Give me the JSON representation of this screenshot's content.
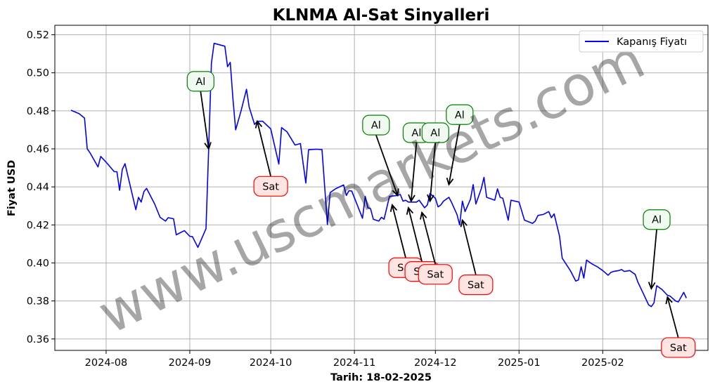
{
  "chart_data": {
    "type": "line",
    "title": "KLNMA Al-Sat Sinyalleri",
    "xlabel": "Tarih: 18-02-2025",
    "ylabel": "Fiyat USD",
    "ylim": [
      0.354,
      0.525
    ],
    "xlim": [
      "2024-07-13",
      "2025-03-12"
    ],
    "x_tick_labels": [
      "2024-08",
      "2024-09",
      "2024-10",
      "2024-11",
      "2024-12",
      "2025-01",
      "2025-02"
    ],
    "x_tick_dates": [
      "2024-08-01",
      "2024-09-01",
      "2024-10-01",
      "2024-11-01",
      "2024-12-01",
      "2025-01-01",
      "2025-02-01"
    ],
    "y_ticks": [
      0.36,
      0.38,
      0.4,
      0.42,
      0.44,
      0.46,
      0.48,
      0.5,
      0.52
    ],
    "y_tick_labels": [
      "0.36",
      "0.38",
      "0.40",
      "0.42",
      "0.44",
      "0.46",
      "0.48",
      "0.50",
      "0.52"
    ],
    "grid": true,
    "legend_position": "top-right",
    "series": [
      {
        "name": "Kapanış Fiyatı",
        "color": "#0000ff",
        "points": [
          [
            "2024-07-19",
            0.4803
          ],
          [
            "2024-07-22",
            0.4785
          ],
          [
            "2024-07-24",
            0.4762
          ],
          [
            "2024-07-25",
            0.46
          ],
          [
            "2024-07-26",
            0.458
          ],
          [
            "2024-07-29",
            0.4505
          ],
          [
            "2024-07-30",
            0.456
          ],
          [
            "2024-08-01",
            0.453
          ],
          [
            "2024-08-04",
            0.448
          ],
          [
            "2024-08-05",
            0.448
          ],
          [
            "2024-08-06",
            0.4382
          ],
          [
            "2024-08-07",
            0.4492
          ],
          [
            "2024-08-08",
            0.4522
          ],
          [
            "2024-08-12",
            0.428
          ],
          [
            "2024-08-13",
            0.4345
          ],
          [
            "2024-08-14",
            0.432
          ],
          [
            "2024-08-15",
            0.4375
          ],
          [
            "2024-08-16",
            0.4392
          ],
          [
            "2024-08-19",
            0.431
          ],
          [
            "2024-08-21",
            0.424
          ],
          [
            "2024-08-23",
            0.422
          ],
          [
            "2024-08-24",
            0.4238
          ],
          [
            "2024-08-26",
            0.4232
          ],
          [
            "2024-08-27",
            0.4148
          ],
          [
            "2024-08-30",
            0.417
          ],
          [
            "2024-09-01",
            0.414
          ],
          [
            "2024-09-02",
            0.4138
          ],
          [
            "2024-09-03",
            0.411
          ],
          [
            "2024-09-04",
            0.4082
          ],
          [
            "2024-09-07",
            0.418
          ],
          [
            "2024-09-08",
            0.4598
          ],
          [
            "2024-09-09",
            0.505
          ],
          [
            "2024-09-10",
            0.5155
          ],
          [
            "2024-09-14",
            0.514
          ],
          [
            "2024-09-15",
            0.5032
          ],
          [
            "2024-09-16",
            0.5055
          ],
          [
            "2024-09-17",
            0.486
          ],
          [
            "2024-09-18",
            0.47
          ],
          [
            "2024-09-20",
            0.48
          ],
          [
            "2024-09-22",
            0.4913
          ],
          [
            "2024-09-23",
            0.482
          ],
          [
            "2024-09-25",
            0.4728
          ],
          [
            "2024-09-26",
            0.4745
          ],
          [
            "2024-09-28",
            0.4745
          ],
          [
            "2024-09-30",
            0.4718
          ],
          [
            "2024-10-01",
            0.4705
          ],
          [
            "2024-10-04",
            0.452
          ],
          [
            "2024-10-05",
            0.4712
          ],
          [
            "2024-10-07",
            0.469
          ],
          [
            "2024-10-10",
            0.462
          ],
          [
            "2024-10-12",
            0.4628
          ],
          [
            "2024-10-14",
            0.442
          ],
          [
            "2024-10-15",
            0.4595
          ],
          [
            "2024-10-18",
            0.4598
          ],
          [
            "2024-10-20",
            0.4596
          ],
          [
            "2024-10-22",
            0.4202
          ],
          [
            "2024-10-23",
            0.437
          ],
          [
            "2024-10-25",
            0.439
          ],
          [
            "2024-10-28",
            0.441
          ],
          [
            "2024-10-29",
            0.4355
          ],
          [
            "2024-10-30",
            0.438
          ],
          [
            "2024-10-31",
            0.4378
          ],
          [
            "2024-11-04",
            0.4235
          ],
          [
            "2024-11-05",
            0.435
          ],
          [
            "2024-11-06",
            0.429
          ],
          [
            "2024-11-07",
            0.4285
          ],
          [
            "2024-11-08",
            0.423
          ],
          [
            "2024-11-10",
            0.422
          ],
          [
            "2024-11-11",
            0.424
          ],
          [
            "2024-11-12",
            0.423
          ],
          [
            "2024-11-14",
            0.435
          ],
          [
            "2024-11-17",
            0.4355
          ],
          [
            "2024-11-18",
            0.436
          ],
          [
            "2024-11-19",
            0.4325
          ],
          [
            "2024-11-20",
            0.433
          ],
          [
            "2024-11-21",
            0.432
          ],
          [
            "2024-11-24",
            0.432
          ],
          [
            "2024-11-25",
            0.433
          ],
          [
            "2024-11-27",
            0.429
          ],
          [
            "2024-11-28",
            0.4305
          ],
          [
            "2024-11-29",
            0.4365
          ],
          [
            "2024-12-01",
            0.434
          ],
          [
            "2024-12-02",
            0.4295
          ],
          [
            "2024-12-03",
            0.4305
          ],
          [
            "2024-12-04",
            0.4325
          ],
          [
            "2024-12-06",
            0.4345
          ],
          [
            "2024-12-07",
            0.4318
          ],
          [
            "2024-12-09",
            0.4255
          ],
          [
            "2024-12-10",
            0.42
          ],
          [
            "2024-12-11",
            0.4325
          ],
          [
            "2024-12-12",
            0.427
          ],
          [
            "2024-12-14",
            0.4335
          ],
          [
            "2024-12-15",
            0.4412
          ],
          [
            "2024-12-16",
            0.431
          ],
          [
            "2024-12-18",
            0.439
          ],
          [
            "2024-12-19",
            0.445
          ],
          [
            "2024-12-20",
            0.4345
          ],
          [
            "2024-12-22",
            0.4335
          ],
          [
            "2024-12-23",
            0.433
          ],
          [
            "2024-12-24",
            0.439
          ],
          [
            "2024-12-25",
            0.4345
          ],
          [
            "2024-12-26",
            0.434
          ],
          [
            "2024-12-28",
            0.4225
          ],
          [
            "2024-12-29",
            0.433
          ],
          [
            "2025-01-01",
            0.432
          ],
          [
            "2025-01-03",
            0.4225
          ],
          [
            "2025-01-06",
            0.4208
          ],
          [
            "2025-01-07",
            0.422
          ],
          [
            "2025-01-08",
            0.425
          ],
          [
            "2025-01-10",
            0.4255
          ],
          [
            "2025-01-12",
            0.427
          ],
          [
            "2025-01-13",
            0.4238
          ],
          [
            "2025-01-14",
            0.4258
          ],
          [
            "2025-01-16",
            0.414
          ],
          [
            "2025-01-17",
            0.4025
          ],
          [
            "2025-01-20",
            0.396
          ],
          [
            "2025-01-22",
            0.3905
          ],
          [
            "2025-01-23",
            0.391
          ],
          [
            "2025-01-24",
            0.398
          ],
          [
            "2025-01-25",
            0.392
          ],
          [
            "2025-01-26",
            0.4015
          ],
          [
            "2025-01-28",
            0.3995
          ],
          [
            "2025-01-30",
            0.398
          ],
          [
            "2025-02-01",
            0.396
          ],
          [
            "2025-02-03",
            0.3935
          ],
          [
            "2025-02-04",
            0.395
          ],
          [
            "2025-02-05",
            0.3955
          ],
          [
            "2025-02-07",
            0.396
          ],
          [
            "2025-02-08",
            0.3965
          ],
          [
            "2025-02-09",
            0.3955
          ],
          [
            "2025-02-11",
            0.396
          ],
          [
            "2025-02-13",
            0.394
          ],
          [
            "2025-02-14",
            0.39
          ],
          [
            "2025-02-16",
            0.384
          ],
          [
            "2025-02-18",
            0.378
          ],
          [
            "2025-02-19",
            0.377
          ],
          [
            "2025-02-20",
            0.379
          ],
          [
            "2025-02-21",
            0.388
          ],
          [
            "2025-02-23",
            0.386
          ],
          [
            "2025-02-25",
            0.383
          ],
          [
            "2025-02-26",
            0.3825
          ],
          [
            "2025-02-28",
            0.38
          ],
          [
            "2025-03-01",
            0.3795
          ],
          [
            "2025-03-03",
            0.3845
          ],
          [
            "2025-03-04",
            0.3815
          ]
        ]
      }
    ],
    "signals": [
      {
        "label": "Al",
        "type": "buy"
      },
      {
        "label": "Sat",
        "type": "sell"
      },
      {
        "label": "Al",
        "type": "buy"
      },
      {
        "label": "Al",
        "type": "buy"
      },
      {
        "label": "Al",
        "type": "buy"
      },
      {
        "label": "Al",
        "type": "buy"
      },
      {
        "label": "Sat",
        "type": "sell"
      },
      {
        "label": "Sat",
        "type": "sell"
      },
      {
        "label": "Sat",
        "type": "sell"
      },
      {
        "label": "Sat",
        "type": "sell"
      },
      {
        "label": "Al",
        "type": "buy"
      },
      {
        "label": "Sat",
        "type": "sell"
      }
    ],
    "watermark": "www.uscmarkets.com"
  }
}
